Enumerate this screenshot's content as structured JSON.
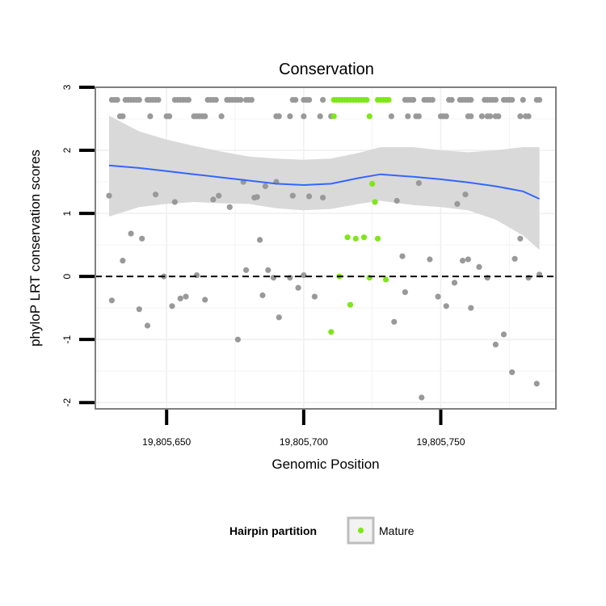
{
  "chart_data": {
    "type": "scatter",
    "title": "Conservation",
    "xlabel": "Genomic Position",
    "ylabel": "phyloP LRT conservation scores",
    "xlim": [
      19805624,
      19805792
    ],
    "ylim": [
      -2.1,
      3.0
    ],
    "x_ticks": [
      {
        "value": 19805650,
        "label": "19,805,650"
      },
      {
        "value": 19805700,
        "label": "19,805,700"
      },
      {
        "value": 19805750,
        "label": "19,805,750"
      }
    ],
    "y_ticks": [
      {
        "value": -2,
        "label": "-2"
      },
      {
        "value": -1,
        "label": "-1"
      },
      {
        "value": 0,
        "label": "0"
      },
      {
        "value": 1,
        "label": "1"
      },
      {
        "value": 2,
        "label": "2"
      },
      {
        "value": 3,
        "label": "3"
      }
    ],
    "reference_line": {
      "y": 0,
      "style": "dashed",
      "color": "#000000"
    },
    "colors": {
      "other": "#999999",
      "mature": "#7fe619",
      "smooth_line": "#3366ff",
      "ribbon": "#d9d9d9",
      "border": "#7f7f7f",
      "grid": "#f0f0f0"
    },
    "legend": {
      "title": "Hairpin partition",
      "entries": [
        {
          "label": "Mature",
          "color": "#7fe619"
        }
      ]
    },
    "smooth": {
      "x": [
        19805629,
        19805640,
        19805650,
        19805660,
        19805670,
        19805680,
        19805690,
        19805700,
        19805710,
        19805720,
        19805728,
        19805740,
        19805750,
        19805760,
        19805770,
        19805780,
        19805786
      ],
      "y": [
        1.76,
        1.72,
        1.67,
        1.62,
        1.57,
        1.52,
        1.47,
        1.45,
        1.47,
        1.56,
        1.62,
        1.58,
        1.54,
        1.49,
        1.43,
        1.35,
        1.23
      ],
      "upper": [
        2.55,
        2.3,
        2.17,
        2.07,
        1.98,
        1.9,
        1.87,
        1.85,
        1.87,
        1.96,
        2.05,
        2.05,
        2.0,
        1.97,
        2.0,
        2.05,
        2.05
      ],
      "lower": [
        0.95,
        1.1,
        1.15,
        1.18,
        1.16,
        1.15,
        1.08,
        1.05,
        1.07,
        1.15,
        1.2,
        1.13,
        1.1,
        1.05,
        0.9,
        0.65,
        0.42
      ]
    },
    "series": [
      {
        "name": "Other",
        "points": [
          [
            19805630,
            2.8
          ],
          [
            19805631,
            2.8
          ],
          [
            19805632,
            2.8
          ],
          [
            19805635,
            2.8
          ],
          [
            19805636,
            2.8
          ],
          [
            19805637,
            2.8
          ],
          [
            19805638,
            2.8
          ],
          [
            19805639,
            2.8
          ],
          [
            19805640,
            2.8
          ],
          [
            19805643,
            2.8
          ],
          [
            19805644,
            2.8
          ],
          [
            19805645,
            2.8
          ],
          [
            19805646,
            2.8
          ],
          [
            19805647,
            2.8
          ],
          [
            19805653,
            2.8
          ],
          [
            19805654,
            2.8
          ],
          [
            19805655,
            2.8
          ],
          [
            19805656,
            2.8
          ],
          [
            19805657,
            2.8
          ],
          [
            19805658,
            2.8
          ],
          [
            19805665,
            2.8
          ],
          [
            19805666,
            2.8
          ],
          [
            19805667,
            2.8
          ],
          [
            19805668,
            2.8
          ],
          [
            19805672,
            2.8
          ],
          [
            19805673,
            2.8
          ],
          [
            19805674,
            2.8
          ],
          [
            19805675,
            2.8
          ],
          [
            19805676,
            2.8
          ],
          [
            19805677,
            2.8
          ],
          [
            19805679,
            2.8
          ],
          [
            19805680,
            2.8
          ],
          [
            19805681,
            2.8
          ],
          [
            19805696,
            2.8
          ],
          [
            19805697,
            2.8
          ],
          [
            19805700,
            2.8
          ],
          [
            19805701,
            2.8
          ],
          [
            19805702,
            2.8
          ],
          [
            19805707,
            2.8
          ],
          [
            19805737,
            2.8
          ],
          [
            19805738,
            2.8
          ],
          [
            19805739,
            2.8
          ],
          [
            19805740,
            2.8
          ],
          [
            19805744,
            2.8
          ],
          [
            19805745,
            2.8
          ],
          [
            19805746,
            2.8
          ],
          [
            19805747,
            2.8
          ],
          [
            19805753,
            2.8
          ],
          [
            19805754,
            2.8
          ],
          [
            19805757,
            2.8
          ],
          [
            19805758,
            2.8
          ],
          [
            19805759,
            2.8
          ],
          [
            19805760,
            2.8
          ],
          [
            19805761,
            2.8
          ],
          [
            19805766,
            2.8
          ],
          [
            19805767,
            2.8
          ],
          [
            19805768,
            2.8
          ],
          [
            19805769,
            2.8
          ],
          [
            19805770,
            2.8
          ],
          [
            19805773,
            2.8
          ],
          [
            19805774,
            2.8
          ],
          [
            19805775,
            2.8
          ],
          [
            19805776,
            2.8
          ],
          [
            19805780,
            2.8
          ],
          [
            19805785,
            2.8
          ],
          [
            19805786,
            2.8
          ],
          [
            19805633,
            2.54
          ],
          [
            19805634,
            2.54
          ],
          [
            19805644,
            2.54
          ],
          [
            19805650,
            2.54
          ],
          [
            19805651,
            2.54
          ],
          [
            19805660,
            2.54
          ],
          [
            19805661,
            2.54
          ],
          [
            19805662,
            2.54
          ],
          [
            19805663,
            2.54
          ],
          [
            19805664,
            2.54
          ],
          [
            19805670,
            2.54
          ],
          [
            19805690,
            2.54
          ],
          [
            19805691,
            2.54
          ],
          [
            19805695,
            2.54
          ],
          [
            19805700,
            2.54
          ],
          [
            19805706,
            2.54
          ],
          [
            19805710,
            2.54
          ],
          [
            19805732,
            2.54
          ],
          [
            19805738,
            2.54
          ],
          [
            19805741,
            2.54
          ],
          [
            19805742,
            2.54
          ],
          [
            19805750,
            2.54
          ],
          [
            19805751,
            2.54
          ],
          [
            19805752,
            2.54
          ],
          [
            19805760,
            2.54
          ],
          [
            19805761,
            2.54
          ],
          [
            19805765,
            2.54
          ],
          [
            19805767,
            2.54
          ],
          [
            19805768,
            2.54
          ],
          [
            19805770,
            2.54
          ],
          [
            19805771,
            2.54
          ],
          [
            19805779,
            2.54
          ],
          [
            19805781,
            2.54
          ],
          [
            19805782,
            2.54
          ],
          [
            19805629,
            1.28
          ],
          [
            19805630,
            -0.38
          ],
          [
            19805634,
            0.25
          ],
          [
            19805637,
            0.68
          ],
          [
            19805640,
            -0.52
          ],
          [
            19805641,
            0.6
          ],
          [
            19805643,
            -0.78
          ],
          [
            19805646,
            1.3
          ],
          [
            19805649,
            0.0
          ],
          [
            19805652,
            -0.47
          ],
          [
            19805653,
            1.18
          ],
          [
            19805655,
            -0.35
          ],
          [
            19805657,
            -0.32
          ],
          [
            19805661,
            0.02
          ],
          [
            19805664,
            -0.37
          ],
          [
            19805667,
            1.22
          ],
          [
            19805669,
            1.28
          ],
          [
            19805673,
            1.1
          ],
          [
            19805676,
            -1.0
          ],
          [
            19805678,
            1.5
          ],
          [
            19805679,
            0.1
          ],
          [
            19805682,
            1.25
          ],
          [
            19805683,
            1.26
          ],
          [
            19805684,
            0.58
          ],
          [
            19805685,
            -0.3
          ],
          [
            19805686,
            1.43
          ],
          [
            19805687,
            0.1
          ],
          [
            19805689,
            -0.02
          ],
          [
            19805690,
            1.5
          ],
          [
            19805691,
            -0.65
          ],
          [
            19805695,
            -0.02
          ],
          [
            19805696,
            1.28
          ],
          [
            19805698,
            -0.18
          ],
          [
            19805700,
            0.02
          ],
          [
            19805702,
            1.27
          ],
          [
            19805704,
            -0.32
          ],
          [
            19805707,
            1.25
          ],
          [
            19805733,
            -0.72
          ],
          [
            19805734,
            1.2
          ],
          [
            19805736,
            0.32
          ],
          [
            19805737,
            -0.25
          ],
          [
            19805742,
            1.48
          ],
          [
            19805743,
            -1.92
          ],
          [
            19805746,
            0.27
          ],
          [
            19805749,
            -0.32
          ],
          [
            19805752,
            -0.47
          ],
          [
            19805755,
            -0.1
          ],
          [
            19805756,
            1.15
          ],
          [
            19805758,
            0.25
          ],
          [
            19805759,
            1.3
          ],
          [
            19805760,
            0.27
          ],
          [
            19805761,
            -0.5
          ],
          [
            19805764,
            0.15
          ],
          [
            19805767,
            -0.02
          ],
          [
            19805770,
            -1.08
          ],
          [
            19805773,
            -0.92
          ],
          [
            19805776,
            -1.52
          ],
          [
            19805777,
            0.28
          ],
          [
            19805779,
            0.6
          ],
          [
            19805782,
            -0.02
          ],
          [
            19805785,
            -1.7
          ],
          [
            19805786,
            0.03
          ]
        ]
      },
      {
        "name": "Mature",
        "points": [
          [
            19805711,
            2.8
          ],
          [
            19805712,
            2.8
          ],
          [
            19805713,
            2.8
          ],
          [
            19805714,
            2.8
          ],
          [
            19805715,
            2.8
          ],
          [
            19805716,
            2.8
          ],
          [
            19805717,
            2.8
          ],
          [
            19805718,
            2.8
          ],
          [
            19805719,
            2.8
          ],
          [
            19805720,
            2.8
          ],
          [
            19805721,
            2.8
          ],
          [
            19805722,
            2.8
          ],
          [
            19805723,
            2.8
          ],
          [
            19805727,
            2.8
          ],
          [
            19805728,
            2.8
          ],
          [
            19805729,
            2.8
          ],
          [
            19805730,
            2.8
          ],
          [
            19805731,
            2.8
          ],
          [
            19805711,
            2.54
          ],
          [
            19805724,
            2.54
          ],
          [
            19805725,
            1.47
          ],
          [
            19805726,
            1.18
          ],
          [
            19805716,
            0.62
          ],
          [
            19805719,
            0.6
          ],
          [
            19805722,
            0.62
          ],
          [
            19805727,
            0.6
          ],
          [
            19805713,
            0.0
          ],
          [
            19805724,
            -0.02
          ],
          [
            19805730,
            -0.05
          ],
          [
            19805717,
            -0.45
          ],
          [
            19805710,
            -0.88
          ]
        ]
      }
    ]
  }
}
